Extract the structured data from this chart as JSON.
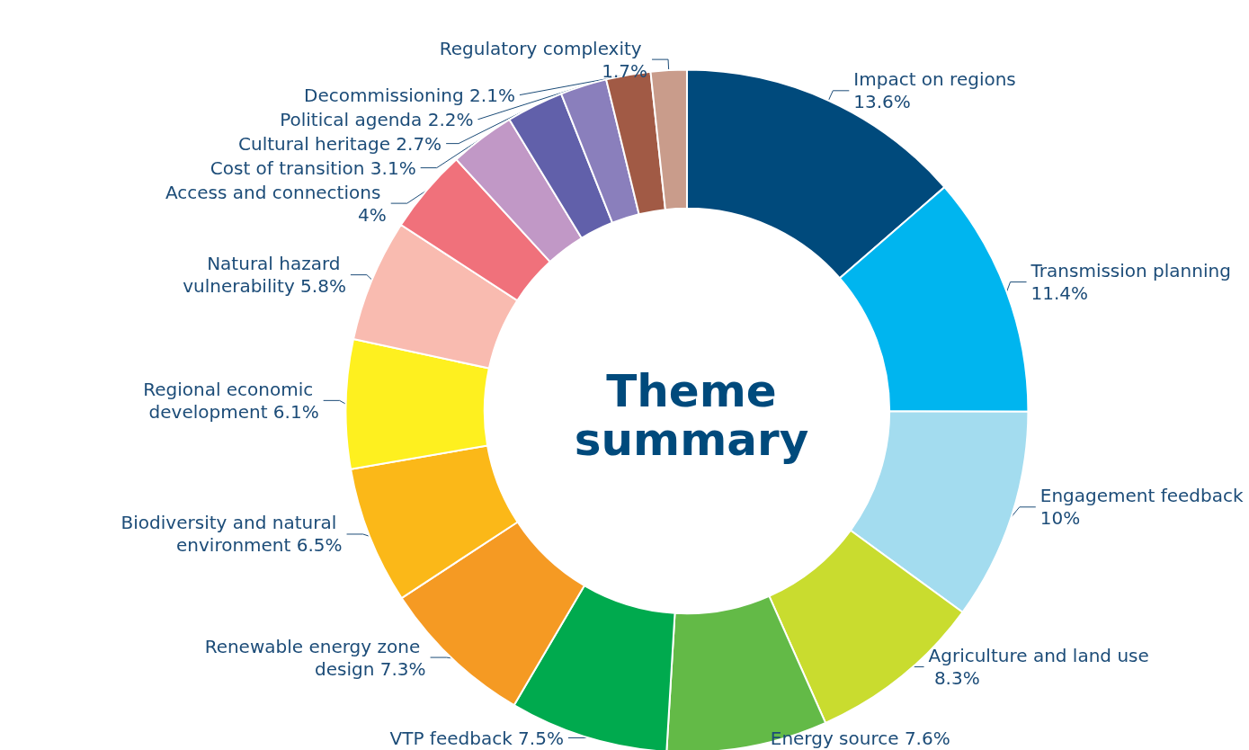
{
  "chart_data": {
    "type": "donut",
    "title": "Theme summary",
    "categories": [
      "Impact on regions",
      "Transmission planning",
      "Engagement feedback",
      "Agriculture and land use",
      "Energy source",
      "VTP feedback",
      "Renewable energy zone design",
      "Biodiversity and natural environment",
      "Regional economic development",
      "Natural hazard vulnerability",
      "Access and connections",
      "Cost of transition",
      "Cultural heritage",
      "Political agenda",
      "Decommissioning",
      "Regulatory complexity"
    ],
    "values": [
      13.6,
      11.4,
      10,
      8.3,
      7.6,
      7.5,
      7.3,
      6.5,
      6.1,
      5.8,
      4,
      3.1,
      2.7,
      2.2,
      2.1,
      1.7
    ],
    "value_labels": [
      "13.6%",
      "11.4%",
      "10%",
      "8.3%",
      "7.6%",
      "7.5%",
      "7.3%",
      "6.5%",
      "6.1%",
      "5.8%",
      "4%",
      "3.1%",
      "2.7%",
      "2.2%",
      "2.1%",
      "1.7%"
    ],
    "colors": [
      "#004a7c",
      "#00b5ef",
      "#a3dcef",
      "#c9dc2f",
      "#63ba47",
      "#00aa4e",
      "#f59a23",
      "#fbb818",
      "#fef01f",
      "#f9bbb0",
      "#f0717b",
      "#c198c6",
      "#6160aa",
      "#8a7fbc",
      "#a15a45",
      "#c99c8b"
    ]
  }
}
